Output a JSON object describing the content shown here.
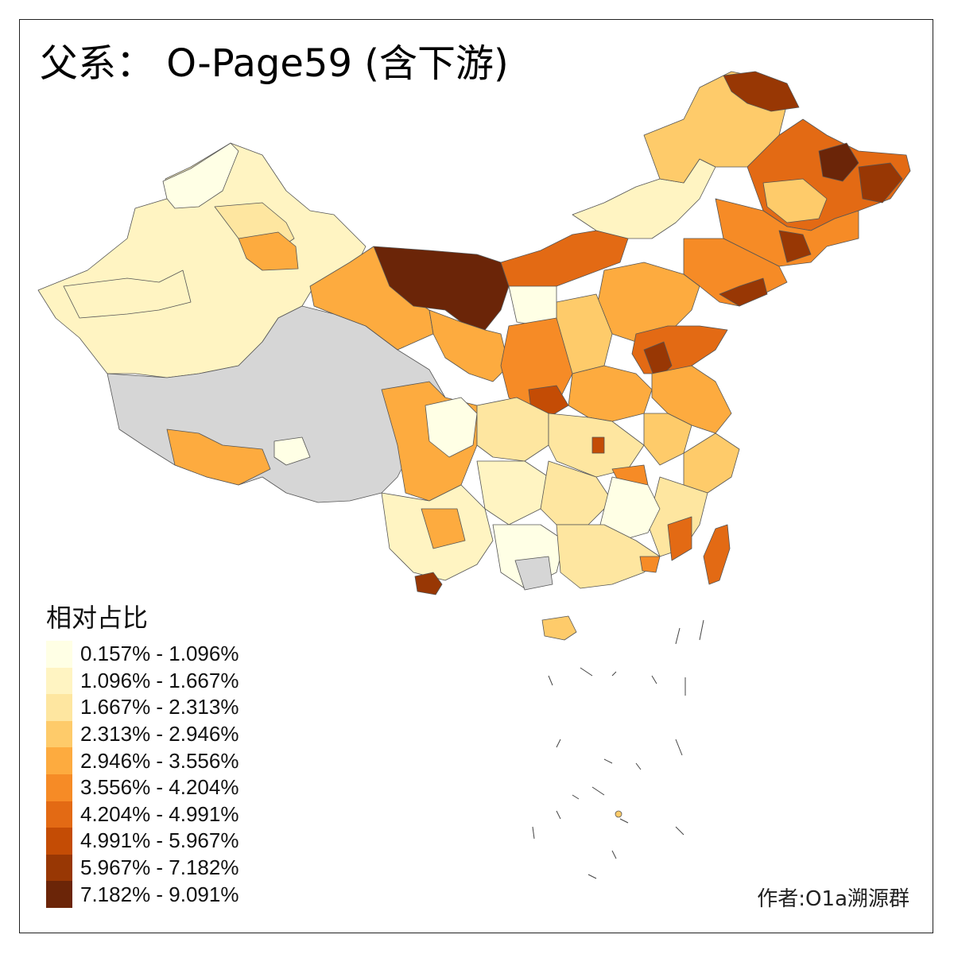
{
  "title": "父系： O-Page59 (含下游)",
  "legend": {
    "title": "相对占比",
    "items": [
      {
        "label": "0.157% - 1.096%",
        "color": "#ffffe5"
      },
      {
        "label": "1.096% - 1.667%",
        "color": "#fff4c2"
      },
      {
        "label": "1.667% - 2.313%",
        "color": "#fee6a0"
      },
      {
        "label": "2.313% - 2.946%",
        "color": "#fecb6a"
      },
      {
        "label": "2.946% - 3.556%",
        "color": "#fdab3f"
      },
      {
        "label": "3.556% - 4.204%",
        "color": "#f68b26"
      },
      {
        "label": "4.204% - 4.991%",
        "color": "#e36a14"
      },
      {
        "label": "4.991% - 5.967%",
        "color": "#c44c05"
      },
      {
        "label": "5.967% - 7.182%",
        "color": "#983704"
      },
      {
        "label": "7.182% - 9.091%",
        "color": "#6b2508"
      }
    ]
  },
  "no_data_color": "#d6d6d6",
  "author": "作者:O1a溯源群"
}
